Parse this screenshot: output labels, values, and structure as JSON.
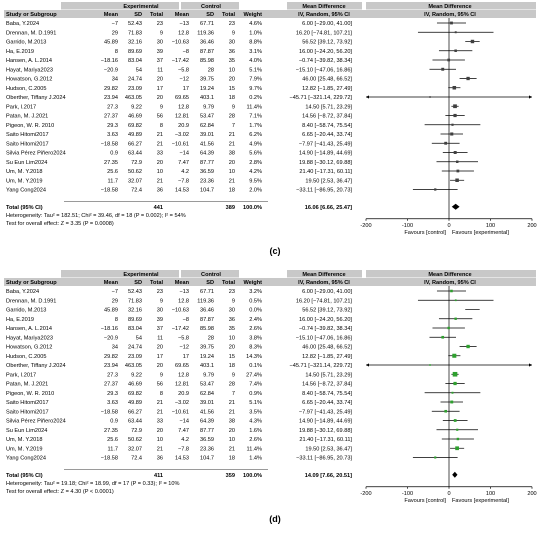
{
  "colors": {
    "header_bg": "#c8c8c8",
    "marker_c": "#404040",
    "marker_d": "#2ea02e",
    "line": "#000000"
  },
  "headers": {
    "study": "Study or Subgroup",
    "experimental": "Experimental",
    "control": "Control",
    "mean": "Mean",
    "sd": "SD",
    "total": "Total",
    "weight": "Weight",
    "md": "Mean Difference",
    "md_sub": "IV, Random, 95% CI"
  },
  "chart_data": [
    {
      "type": "forest",
      "panel_label": "(c)",
      "xlim": [
        -200,
        200
      ],
      "ticks": [
        "-200",
        "-100",
        "0",
        "100",
        "200"
      ],
      "favours_left": "Favours [control]",
      "favours_right": "Favours [experimental]",
      "studies": [
        {
          "name": "Baba, Y.2024",
          "e_mean": "−7",
          "e_sd": "52.43",
          "e_n": "23",
          "c_mean": "−13",
          "c_sd": "67.71",
          "c_n": "23",
          "weight": "4.6%",
          "ci_text": "6.00 [−29.00, 41.00]",
          "md": 6.0,
          "lo": -29.0,
          "hi": 41.0
        },
        {
          "name": "Drennan, M. D.1991",
          "e_mean": "29",
          "e_sd": "71.83",
          "e_n": "9",
          "c_mean": "12.8",
          "c_sd": "119.36",
          "c_n": "9",
          "weight": "1.0%",
          "ci_text": "16.20 [−74.81, 107.21]",
          "md": 16.2,
          "lo": -74.81,
          "hi": 107.21
        },
        {
          "name": "Garrido, M.2013",
          "e_mean": "45.89",
          "e_sd": "32.16",
          "e_n": "30",
          "c_mean": "−10.63",
          "c_sd": "36.46",
          "c_n": "30",
          "weight": "8.8%",
          "ci_text": "56.52 [39.12, 73.92]",
          "md": 56.52,
          "lo": 39.12,
          "hi": 73.92
        },
        {
          "name": "Ha, E.2019",
          "e_mean": "8",
          "e_sd": "89.69",
          "e_n": "39",
          "c_mean": "−8",
          "c_sd": "87.87",
          "c_n": "36",
          "weight": "3.1%",
          "ci_text": "16.00 [−24.20, 56.20]",
          "md": 16.0,
          "lo": -24.2,
          "hi": 56.2
        },
        {
          "name": "Hansen, A. L.2014",
          "e_mean": "−18.16",
          "e_sd": "83.04",
          "e_n": "37",
          "c_mean": "−17.42",
          "c_sd": "85.98",
          "c_n": "35",
          "weight": "4.0%",
          "ci_text": "−0.74 [−39.82, 38.34]",
          "md": -0.74,
          "lo": -39.82,
          "hi": 38.34
        },
        {
          "name": "Hayat, Mariya2023",
          "e_mean": "−20.9",
          "e_sd": "54",
          "e_n": "11",
          "c_mean": "−5.8",
          "c_sd": "28",
          "c_n": "10",
          "weight": "5.1%",
          "ci_text": "−15.10 [−47.06, 16.86]",
          "md": -15.1,
          "lo": -47.06,
          "hi": 16.86
        },
        {
          "name": "Howatson, G.2012",
          "e_mean": "34",
          "e_sd": "24.74",
          "e_n": "20",
          "c_mean": "−12",
          "c_sd": "39.75",
          "c_n": "20",
          "weight": "7.9%",
          "ci_text": "46.00 [25.48, 66.52]",
          "md": 46.0,
          "lo": 25.48,
          "hi": 66.52
        },
        {
          "name": "Hudson, C.2005",
          "e_mean": "29.82",
          "e_sd": "23.09",
          "e_n": "17",
          "c_mean": "17",
          "c_sd": "19.24",
          "c_n": "15",
          "weight": "9.7%",
          "ci_text": "12.82 [−1.85, 27.49]",
          "md": 12.82,
          "lo": -1.85,
          "hi": 27.49
        },
        {
          "name": "Oberther, Tiffany J.2024",
          "e_mean": "23.94",
          "e_sd": "463.05",
          "e_n": "20",
          "c_mean": "69.65",
          "c_sd": "403.1",
          "c_n": "18",
          "weight": "0.2%",
          "ci_text": "−45.71 [−321.14, 229.72]",
          "md": -45.71,
          "lo": -321.14,
          "hi": 229.72
        },
        {
          "name": "Park, I.2017",
          "e_mean": "27.3",
          "e_sd": "9.22",
          "e_n": "9",
          "c_mean": "12.8",
          "c_sd": "9.79",
          "c_n": "9",
          "weight": "11.4%",
          "ci_text": "14.50 [5.71, 23.29]",
          "md": 14.5,
          "lo": 5.71,
          "hi": 23.29
        },
        {
          "name": "Patan, M. J.2021",
          "e_mean": "27.37",
          "e_sd": "46.69",
          "e_n": "56",
          "c_mean": "12.81",
          "c_sd": "53.47",
          "c_n": "28",
          "weight": "7.1%",
          "ci_text": "14.56 [−8.72, 37.84]",
          "md": 14.56,
          "lo": -8.72,
          "hi": 37.84
        },
        {
          "name": "Pigeon, W. R. 2010",
          "e_mean": "29.3",
          "e_sd": "69.82",
          "e_n": "8",
          "c_mean": "20.9",
          "c_sd": "62.84",
          "c_n": "7",
          "weight": "1.7%",
          "ci_text": "8.40 [−58.74, 75.54]",
          "md": 8.4,
          "lo": -58.74,
          "hi": 75.54
        },
        {
          "name": "Saito Hitomi2017",
          "e_mean": "3.63",
          "e_sd": "49.89",
          "e_n": "21",
          "c_mean": "−3.02",
          "c_sd": "39.01",
          "c_n": "21",
          "weight": "6.2%",
          "ci_text": "6.65 [−20.44, 33.74]",
          "md": 6.65,
          "lo": -20.44,
          "hi": 33.74
        },
        {
          "name": "Saito Hitomi2017",
          "e_mean": "−18.58",
          "e_sd": "66.27",
          "e_n": "21",
          "c_mean": "−10.61",
          "c_sd": "41.56",
          "c_n": "21",
          "weight": "4.9%",
          "ci_text": "−7.97 [−41.43, 25.49]",
          "md": -7.97,
          "lo": -41.43,
          "hi": 25.49
        },
        {
          "name": "Silvia Pérez Piñero2024",
          "e_mean": "0.9",
          "e_sd": "63.44",
          "e_n": "33",
          "c_mean": "−14",
          "c_sd": "64.39",
          "c_n": "38",
          "weight": "5.6%",
          "ci_text": "14.90 [−14.89, 44.69]",
          "md": 14.9,
          "lo": -14.89,
          "hi": 44.69
        },
        {
          "name": "Su Eun Lim2024",
          "e_mean": "27.35",
          "e_sd": "72.9",
          "e_n": "20",
          "c_mean": "7.47",
          "c_sd": "87.77",
          "c_n": "20",
          "weight": "2.8%",
          "ci_text": "19.88 [−30.12, 69.88]",
          "md": 19.88,
          "lo": -30.12,
          "hi": 69.88
        },
        {
          "name": "Um, M. Y.2018",
          "e_mean": "25.6",
          "e_sd": "50.62",
          "e_n": "10",
          "c_mean": "4.2",
          "c_sd": "36.59",
          "c_n": "10",
          "weight": "4.2%",
          "ci_text": "21.40 [−17.31, 60.11]",
          "md": 21.4,
          "lo": -17.31,
          "hi": 60.11
        },
        {
          "name": "Um, M. Y.2019",
          "e_mean": "11.7",
          "e_sd": "32.07",
          "e_n": "21",
          "c_mean": "−7.8",
          "c_sd": "23.36",
          "c_n": "21",
          "weight": "9.5%",
          "ci_text": "19.50 [2.53, 36.47]",
          "md": 19.5,
          "lo": 2.53,
          "hi": 36.47
        },
        {
          "name": "Yang Cong2024",
          "e_mean": "−18.58",
          "e_sd": "72.4",
          "e_n": "36",
          "c_mean": "14.53",
          "c_sd": "104.7",
          "c_n": "18",
          "weight": "2.0%",
          "ci_text": "−33.11 [−86.95, 20.73]",
          "md": -33.11,
          "lo": -86.95,
          "hi": 20.73
        }
      ],
      "total": {
        "label": "Total (95% CI)",
        "e_n": "441",
        "c_n": "389",
        "weight": "100.0%",
        "ci_text": "16.06 [6.66, 25.47]",
        "md": 16.06,
        "lo": 6.66,
        "hi": 25.47
      },
      "heterogeneity": "Heterogeneity: Tau² = 182.51; Chi² = 39.46, df = 18 (P = 0.002); I² = 54%",
      "overall_effect": "Test for overall effect: Z = 3.35 (P = 0.0008)"
    },
    {
      "type": "forest",
      "panel_label": "(d)",
      "xlim": [
        -200,
        200
      ],
      "ticks": [
        "-200",
        "-100",
        "0",
        "100",
        "200"
      ],
      "favours_left": "Favours [control]",
      "favours_right": "Favours [experimental]",
      "studies": [
        {
          "name": "Baba, Y.2024",
          "e_mean": "−7",
          "e_sd": "52.43",
          "e_n": "23",
          "c_mean": "−13",
          "c_sd": "67.71",
          "c_n": "23",
          "weight": "3.2%",
          "ci_text": "6.00 [−29.00, 41.00]",
          "md": 6.0,
          "lo": -29.0,
          "hi": 41.0
        },
        {
          "name": "Drennan, M. D.1991",
          "e_mean": "29",
          "e_sd": "71.83",
          "e_n": "9",
          "c_mean": "12.8",
          "c_sd": "119.36",
          "c_n": "9",
          "weight": "0.5%",
          "ci_text": "16.20 [−74.81, 107.21]",
          "md": 16.2,
          "lo": -74.81,
          "hi": 107.21
        },
        {
          "name": "Garrido, M.2013",
          "e_mean": "45.89",
          "e_sd": "32.16",
          "e_n": "30",
          "c_mean": "−10.63",
          "c_sd": "36.46",
          "c_n": "30",
          "weight": "0.0%",
          "ci_text": "56.52 [39.12, 73.92]",
          "md": 56.52,
          "lo": 39.12,
          "hi": 73.92,
          "excluded": true
        },
        {
          "name": "Ha, E.2019",
          "e_mean": "8",
          "e_sd": "89.69",
          "e_n": "39",
          "c_mean": "−8",
          "c_sd": "87.87",
          "c_n": "36",
          "weight": "2.4%",
          "ci_text": "16.00 [−24.20, 56.20]",
          "md": 16.0,
          "lo": -24.2,
          "hi": 56.2
        },
        {
          "name": "Hansen, A. L.2014",
          "e_mean": "−18.16",
          "e_sd": "83.04",
          "e_n": "37",
          "c_mean": "−17.42",
          "c_sd": "85.98",
          "c_n": "35",
          "weight": "2.6%",
          "ci_text": "−0.74 [−39.82, 38.34]",
          "md": -0.74,
          "lo": -39.82,
          "hi": 38.34
        },
        {
          "name": "Hayat, Mariya2023",
          "e_mean": "−20.9",
          "e_sd": "54",
          "e_n": "11",
          "c_mean": "−5.8",
          "c_sd": "28",
          "c_n": "10",
          "weight": "3.8%",
          "ci_text": "−15.10 [−47.06, 16.86]",
          "md": -15.1,
          "lo": -47.06,
          "hi": 16.86
        },
        {
          "name": "Howatson, G.2012",
          "e_mean": "34",
          "e_sd": "24.74",
          "e_n": "20",
          "c_mean": "−12",
          "c_sd": "39.75",
          "c_n": "20",
          "weight": "8.3%",
          "ci_text": "46.00 [25.48, 66.52]",
          "md": 46.0,
          "lo": 25.48,
          "hi": 66.52
        },
        {
          "name": "Hudson, C.2005",
          "e_mean": "29.82",
          "e_sd": "23.09",
          "e_n": "17",
          "c_mean": "17",
          "c_sd": "19.24",
          "c_n": "15",
          "weight": "14.3%",
          "ci_text": "12.82 [−1.85, 27.49]",
          "md": 12.82,
          "lo": -1.85,
          "hi": 27.49
        },
        {
          "name": "Oberther, Tiffany J.2024",
          "e_mean": "23.94",
          "e_sd": "463.05",
          "e_n": "20",
          "c_mean": "69.65",
          "c_sd": "403.1",
          "c_n": "18",
          "weight": "0.1%",
          "ci_text": "−45.71 [−321.14, 229.72]",
          "md": -45.71,
          "lo": -321.14,
          "hi": 229.72
        },
        {
          "name": "Park, I.2017",
          "e_mean": "27.3",
          "e_sd": "9.22",
          "e_n": "9",
          "c_mean": "12.8",
          "c_sd": "9.79",
          "c_n": "9",
          "weight": "27.4%",
          "ci_text": "14.50 [5.71, 23.29]",
          "md": 14.5,
          "lo": 5.71,
          "hi": 23.29
        },
        {
          "name": "Patan, M. J.2021",
          "e_mean": "27.37",
          "e_sd": "46.69",
          "e_n": "56",
          "c_mean": "12.81",
          "c_sd": "53.47",
          "c_n": "28",
          "weight": "7.4%",
          "ci_text": "14.56 [−8.72, 37.84]",
          "md": 14.56,
          "lo": -8.72,
          "hi": 37.84
        },
        {
          "name": "Pigeon, W. R. 2010",
          "e_mean": "29.3",
          "e_sd": "69.82",
          "e_n": "8",
          "c_mean": "20.9",
          "c_sd": "62.84",
          "c_n": "7",
          "weight": "0.9%",
          "ci_text": "8.40 [−58.74, 75.54]",
          "md": 8.4,
          "lo": -58.74,
          "hi": 75.54
        },
        {
          "name": "Saito Hitomi2017",
          "e_mean": "3.63",
          "e_sd": "49.89",
          "e_n": "21",
          "c_mean": "−3.02",
          "c_sd": "39.01",
          "c_n": "21",
          "weight": "5.1%",
          "ci_text": "6.65 [−20.44, 33.74]",
          "md": 6.65,
          "lo": -20.44,
          "hi": 33.74
        },
        {
          "name": "Saito Hitomi2017",
          "e_mean": "−18.58",
          "e_sd": "66.27",
          "e_n": "21",
          "c_mean": "−10.61",
          "c_sd": "41.56",
          "c_n": "21",
          "weight": "3.5%",
          "ci_text": "−7.97 [−41.43, 25.49]",
          "md": -7.97,
          "lo": -41.43,
          "hi": 25.49
        },
        {
          "name": "Silvia Pérez Piñero2024",
          "e_mean": "0.9",
          "e_sd": "63.44",
          "e_n": "33",
          "c_mean": "−14",
          "c_sd": "64.39",
          "c_n": "38",
          "weight": "4.3%",
          "ci_text": "14.90 [−14.89, 44.69]",
          "md": 14.9,
          "lo": -14.89,
          "hi": 44.69
        },
        {
          "name": "Su Eun Lim2024",
          "e_mean": "27.35",
          "e_sd": "72.9",
          "e_n": "20",
          "c_mean": "7.47",
          "c_sd": "87.77",
          "c_n": "20",
          "weight": "1.6%",
          "ci_text": "19.88 [−30.12, 69.88]",
          "md": 19.88,
          "lo": -30.12,
          "hi": 69.88
        },
        {
          "name": "Um, M. Y.2018",
          "e_mean": "25.6",
          "e_sd": "50.62",
          "e_n": "10",
          "c_mean": "4.2",
          "c_sd": "36.59",
          "c_n": "10",
          "weight": "2.6%",
          "ci_text": "21.40 [−17.31, 60.11]",
          "md": 21.4,
          "lo": -17.31,
          "hi": 60.11
        },
        {
          "name": "Um, M. Y.2019",
          "e_mean": "11.7",
          "e_sd": "32.07",
          "e_n": "21",
          "c_mean": "−7.8",
          "c_sd": "23.36",
          "c_n": "21",
          "weight": "11.4%",
          "ci_text": "19.50 [2.53, 36.47]",
          "md": 19.5,
          "lo": 2.53,
          "hi": 36.47
        },
        {
          "name": "Yang Cong2024",
          "e_mean": "−18.58",
          "e_sd": "72.4",
          "e_n": "36",
          "c_mean": "14.53",
          "c_sd": "104.7",
          "c_n": "18",
          "weight": "1.4%",
          "ci_text": "−33.11 [−86.95, 20.73]",
          "md": -33.11,
          "lo": -86.95,
          "hi": 20.73
        }
      ],
      "total": {
        "label": "Total (95% CI)",
        "e_n": "411",
        "c_n": "359",
        "weight": "100.0%",
        "ci_text": "14.09 [7.66, 20.51]",
        "md": 14.09,
        "lo": 7.66,
        "hi": 20.51
      },
      "heterogeneity": "Heterogeneity: Tau² = 19.18; Chi² = 18.99, df = 17 (P = 0.33); I² = 10%",
      "overall_effect": "Test for overall effect: Z = 4.30 (P < 0.0001)"
    }
  ]
}
